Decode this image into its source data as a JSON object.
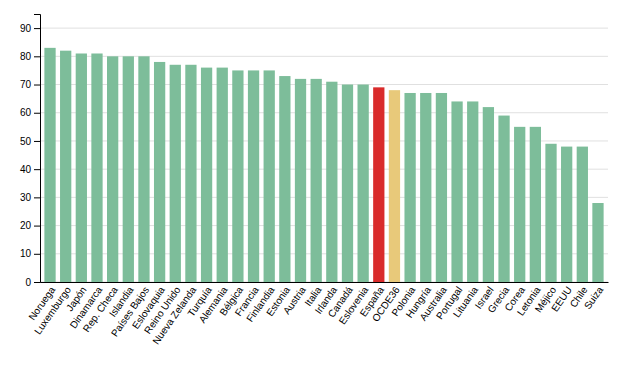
{
  "chart_data": {
    "type": "bar",
    "categories": [
      "Noruega",
      "Luxemburgo",
      "Japón",
      "Dinamarca",
      "Rep. Checa",
      "Islandia",
      "Países Bajos",
      "Eslovaquia",
      "Reino Unido",
      "Nueva Zelanda",
      "Turquía",
      "Alemania",
      "Bélgica",
      "Francia",
      "Finlandia",
      "Estonia",
      "Austria",
      "Italia",
      "Irlanda",
      "Canadá",
      "Eslovenia",
      "España",
      "OCDE36",
      "Polonia",
      "Hungría",
      "Australia",
      "Portugal",
      "Lituania",
      "Israel",
      "Grecia",
      "Corea",
      "Letonia",
      "Méjico",
      "EEUU",
      "Chile",
      "Suiza"
    ],
    "values": [
      83,
      82,
      81,
      81,
      80,
      80,
      80,
      78,
      77,
      77,
      76,
      76,
      75,
      75,
      75,
      73,
      72,
      72,
      71,
      70,
      70,
      69,
      68,
      67,
      67,
      67,
      64,
      64,
      62,
      59,
      55,
      55,
      49,
      48,
      48,
      28
    ],
    "colors": [
      "#7DBD9A",
      "#7DBD9A",
      "#7DBD9A",
      "#7DBD9A",
      "#7DBD9A",
      "#7DBD9A",
      "#7DBD9A",
      "#7DBD9A",
      "#7DBD9A",
      "#7DBD9A",
      "#7DBD9A",
      "#7DBD9A",
      "#7DBD9A",
      "#7DBD9A",
      "#7DBD9A",
      "#7DBD9A",
      "#7DBD9A",
      "#7DBD9A",
      "#7DBD9A",
      "#7DBD9A",
      "#7DBD9A",
      "#D92B2B",
      "#E8C97A",
      "#7DBD9A",
      "#7DBD9A",
      "#7DBD9A",
      "#7DBD9A",
      "#7DBD9A",
      "#7DBD9A",
      "#7DBD9A",
      "#7DBD9A",
      "#7DBD9A",
      "#7DBD9A",
      "#7DBD9A",
      "#7DBD9A",
      "#7DBD9A"
    ],
    "ylim": [
      0,
      95
    ],
    "yticks": [
      0,
      10,
      20,
      30,
      40,
      50,
      60,
      70,
      80,
      90
    ],
    "grid": true
  }
}
